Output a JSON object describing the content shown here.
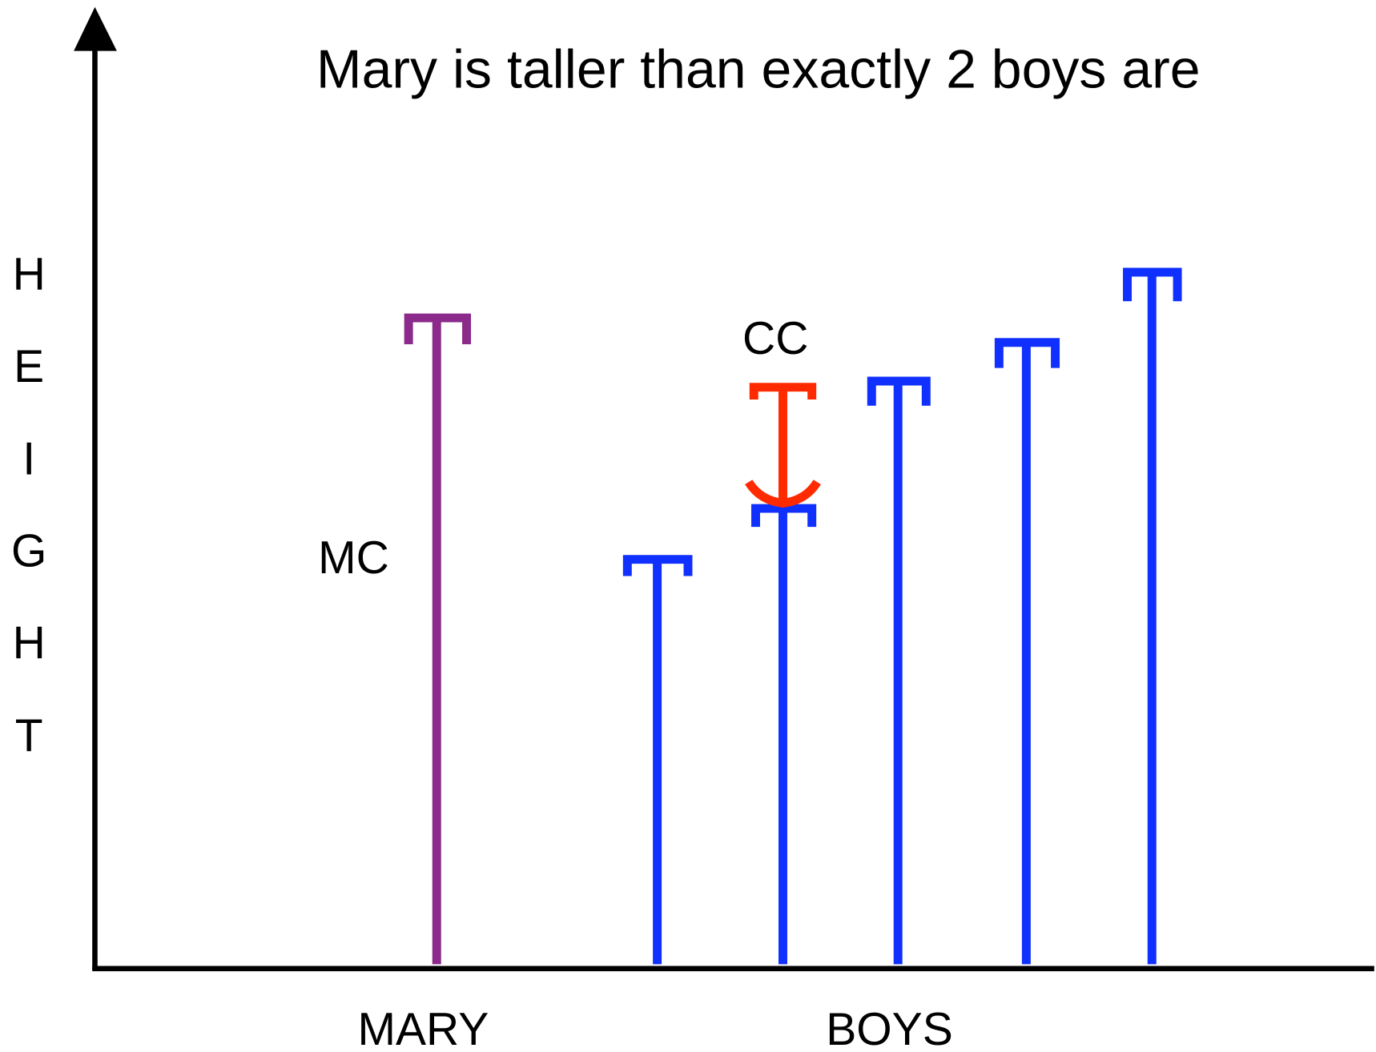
{
  "title": "Mary is taller than exactly 2 boys are",
  "y_axis_letters": [
    "H",
    "E",
    "I",
    "G",
    "H",
    "T"
  ],
  "labels": {
    "mc": "MC",
    "cc": "CC"
  },
  "x_labels": [
    "MARY",
    "BOYS"
  ]
}
